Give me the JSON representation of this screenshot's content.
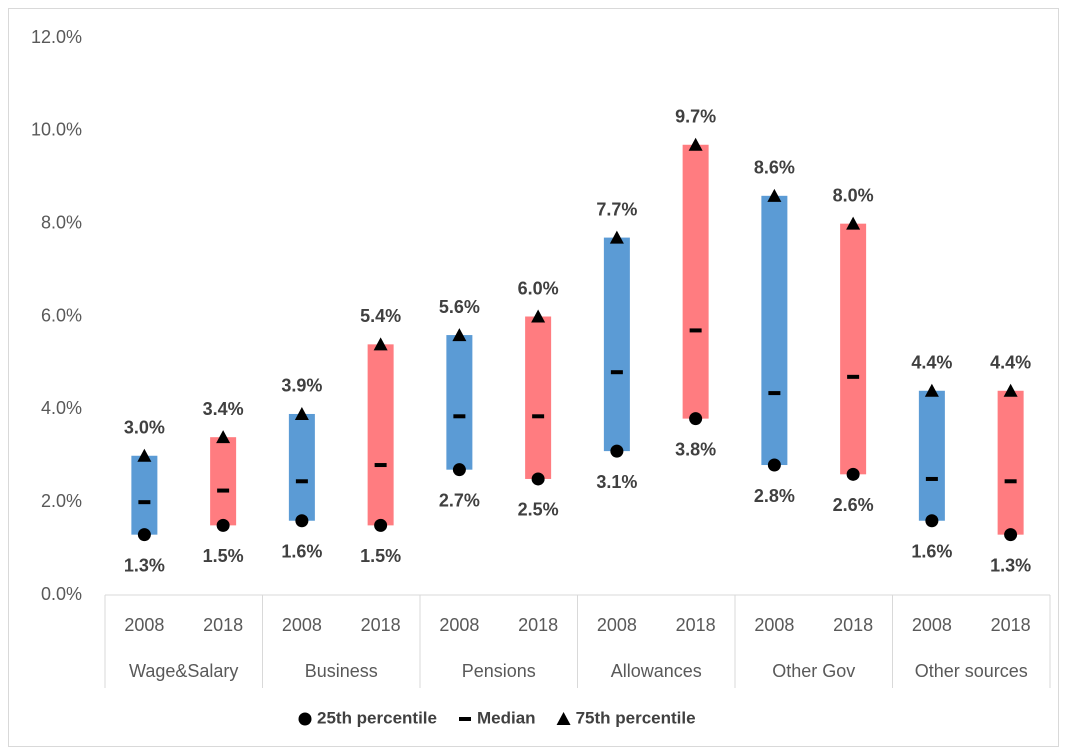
{
  "chart_data": {
    "type": "floating-bar",
    "categories": [
      "2008",
      "2018",
      "2008",
      "2018",
      "2008",
      "2018",
      "2008",
      "2018",
      "2008",
      "2018",
      "2008",
      "2018"
    ],
    "groups": [
      "Wage&Salary",
      "Business",
      "Pensions",
      "Allowances",
      "Other Gov",
      "Other sources"
    ],
    "bar_colors": [
      "#5b9bd5",
      "#ff7c80",
      "#5b9bd5",
      "#ff7c80",
      "#5b9bd5",
      "#ff7c80",
      "#5b9bd5",
      "#ff7c80",
      "#5b9bd5",
      "#ff7c80",
      "#5b9bd5",
      "#ff7c80"
    ],
    "series": [
      {
        "name": "25th percentile",
        "color": "#000000",
        "marker": "circle",
        "values": [
          1.3,
          1.5,
          1.6,
          1.5,
          2.7,
          2.5,
          3.1,
          3.8,
          2.8,
          2.6,
          1.6,
          1.3
        ],
        "value_labels": [
          "1.3%",
          "1.5%",
          "1.6%",
          "1.5%",
          "2.7%",
          "2.5%",
          "3.1%",
          "3.8%",
          "2.8%",
          "2.6%",
          "1.6%",
          "1.3%"
        ]
      },
      {
        "name": "Median",
        "color": "#000000",
        "marker": "dash",
        "values": [
          2.0,
          2.25,
          2.45,
          2.8,
          3.85,
          3.85,
          4.8,
          5.7,
          4.35,
          4.7,
          2.5,
          2.45
        ]
      },
      {
        "name": "75th percentile",
        "color": "#000000",
        "marker": "triangle",
        "values": [
          3.0,
          3.4,
          3.9,
          5.4,
          5.6,
          6.0,
          7.7,
          9.7,
          8.6,
          8.0,
          4.4,
          4.4
        ],
        "value_labels": [
          "3.0%",
          "3.4%",
          "3.9%",
          "5.4%",
          "5.6%",
          "6.0%",
          "7.7%",
          "9.7%",
          "8.6%",
          "8.0%",
          "4.4%",
          "4.4%"
        ]
      }
    ],
    "ylim": [
      0,
      12
    ],
    "yticks": [
      {
        "value": 0,
        "label": "0.0%"
      },
      {
        "value": 2,
        "label": "2.0%"
      },
      {
        "value": 4,
        "label": "4.0%"
      },
      {
        "value": 6,
        "label": "6.0%"
      },
      {
        "value": 8,
        "label": "8.0%"
      },
      {
        "value": 10,
        "label": "10.0%"
      },
      {
        "value": 12,
        "label": "12.0%"
      }
    ],
    "grid": false
  }
}
